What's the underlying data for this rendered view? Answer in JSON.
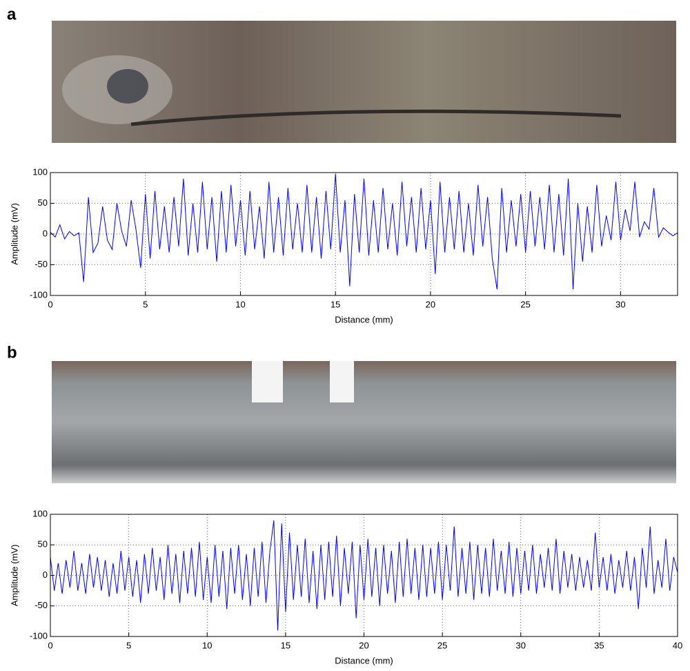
{
  "chart_data": [
    {
      "type": "line",
      "title": "a",
      "x_label": "Distance (mm)",
      "y_label": "Amplitude (mV)",
      "color": "#0000ff",
      "grid": true,
      "xlim": [
        0,
        33
      ],
      "ylim": [
        -100,
        100
      ],
      "xticks": [
        0,
        5,
        10,
        15,
        20,
        25,
        30
      ],
      "yticks": [
        -100,
        -50,
        0,
        50,
        100
      ],
      "x": [
        0,
        0.25,
        0.5,
        0.75,
        1,
        1.25,
        1.5,
        1.75,
        2,
        2.25,
        2.5,
        2.75,
        3,
        3.25,
        3.5,
        3.75,
        4,
        4.25,
        4.5,
        4.75,
        5,
        5.25,
        5.5,
        5.75,
        6,
        6.25,
        6.5,
        6.75,
        7,
        7.25,
        7.5,
        7.75,
        8,
        8.25,
        8.5,
        8.75,
        9,
        9.25,
        9.5,
        9.75,
        10,
        10.25,
        10.5,
        10.75,
        11,
        11.25,
        11.5,
        11.75,
        12,
        12.25,
        12.5,
        12.75,
        13,
        13.25,
        13.5,
        13.75,
        14,
        14.25,
        14.5,
        14.75,
        15,
        15.25,
        15.5,
        15.75,
        16,
        16.25,
        16.5,
        16.75,
        17,
        17.25,
        17.5,
        17.75,
        18,
        18.25,
        18.5,
        18.75,
        19,
        19.25,
        19.5,
        19.75,
        20,
        20.25,
        20.5,
        20.75,
        21,
        21.25,
        21.5,
        21.75,
        22,
        22.25,
        22.5,
        22.75,
        23,
        23.25,
        23.5,
        23.75,
        24,
        24.25,
        24.5,
        24.75,
        25,
        25.25,
        25.5,
        25.75,
        26,
        26.25,
        26.5,
        26.75,
        27,
        27.25,
        27.5,
        27.75,
        28,
        28.25,
        28.5,
        28.75,
        29,
        29.25,
        29.5,
        29.75,
        30,
        30.25,
        30.5,
        30.75,
        31,
        31.25,
        31.5,
        31.75,
        32,
        32.25,
        32.5,
        32.75,
        33
      ],
      "values": [
        3,
        -5,
        15,
        -8,
        4,
        -3,
        2,
        -78,
        60,
        -30,
        -15,
        45,
        -10,
        -25,
        50,
        5,
        -20,
        55,
        8,
        -55,
        65,
        -40,
        70,
        -25,
        45,
        -30,
        60,
        -20,
        90,
        -35,
        50,
        -30,
        85,
        -25,
        60,
        -45,
        70,
        -30,
        80,
        -20,
        55,
        -35,
        70,
        -25,
        45,
        -40,
        85,
        -30,
        60,
        -35,
        75,
        -25,
        50,
        -30,
        80,
        -30,
        60,
        -40,
        70,
        -25,
        98,
        -30,
        55,
        -85,
        65,
        -30,
        90,
        -35,
        55,
        -30,
        75,
        -25,
        50,
        -35,
        85,
        -20,
        60,
        -30,
        75,
        -25,
        55,
        -65,
        85,
        -30,
        60,
        -25,
        70,
        -30,
        50,
        -35,
        80,
        -20,
        60,
        -40,
        -90,
        75,
        -30,
        55,
        -20,
        65,
        -30,
        70,
        -20,
        60,
        -25,
        80,
        -30,
        65,
        -35,
        90,
        -90,
        50,
        -45,
        45,
        -30,
        80,
        -20,
        30,
        -10,
        85,
        -10,
        40,
        5,
        85,
        -5,
        20,
        8,
        75,
        -5,
        10,
        3,
        -3,
        2
      ]
    },
    {
      "type": "line",
      "title": "b",
      "x_label": "Distance (mm)",
      "y_label": "Amplitude (mV)",
      "color": "#0000ff",
      "grid": true,
      "xlim": [
        0,
        40
      ],
      "ylim": [
        -100,
        100
      ],
      "xticks": [
        0,
        5,
        10,
        15,
        20,
        25,
        30,
        35,
        40
      ],
      "yticks": [
        -100,
        -50,
        0,
        50,
        100
      ],
      "x": [
        0,
        0.25,
        0.5,
        0.75,
        1,
        1.25,
        1.5,
        1.75,
        2,
        2.25,
        2.5,
        2.75,
        3,
        3.25,
        3.5,
        3.75,
        4,
        4.25,
        4.5,
        4.75,
        5,
        5.25,
        5.5,
        5.75,
        6,
        6.25,
        6.5,
        6.75,
        7,
        7.25,
        7.5,
        7.75,
        8,
        8.25,
        8.5,
        8.75,
        9,
        9.25,
        9.5,
        9.75,
        10,
        10.25,
        10.5,
        10.75,
        11,
        11.25,
        11.5,
        11.75,
        12,
        12.25,
        12.5,
        12.75,
        13,
        13.25,
        13.5,
        13.75,
        14,
        14.25,
        14.5,
        14.75,
        15,
        15.25,
        15.5,
        15.75,
        16,
        16.25,
        16.5,
        16.75,
        17,
        17.25,
        17.5,
        17.75,
        18,
        18.25,
        18.5,
        18.75,
        19,
        19.25,
        19.5,
        19.75,
        20,
        20.25,
        20.5,
        20.75,
        21,
        21.25,
        21.5,
        21.75,
        22,
        22.25,
        22.5,
        22.75,
        23,
        23.25,
        23.5,
        23.75,
        24,
        24.25,
        24.5,
        24.75,
        25,
        25.25,
        25.5,
        25.75,
        26,
        26.25,
        26.5,
        26.75,
        27,
        27.25,
        27.5,
        27.75,
        28,
        28.25,
        28.5,
        28.75,
        29,
        29.25,
        29.5,
        29.75,
        30,
        30.25,
        30.5,
        30.75,
        31,
        31.25,
        31.5,
        31.75,
        32,
        32.25,
        32.5,
        32.75,
        33,
        33.25,
        33.5,
        33.75,
        34,
        34.25,
        34.5,
        34.75,
        35,
        35.25,
        35.5,
        35.75,
        36,
        36.25,
        36.5,
        36.75,
        37,
        37.25,
        37.5,
        37.75,
        38,
        38.25,
        38.5,
        38.75,
        39,
        39.25,
        39.5,
        39.75,
        40
      ],
      "values": [
        30,
        -25,
        20,
        -30,
        25,
        -20,
        40,
        -25,
        20,
        -30,
        35,
        -20,
        30,
        -25,
        25,
        -35,
        20,
        -30,
        40,
        -25,
        30,
        -35,
        25,
        -45,
        35,
        -30,
        45,
        -25,
        30,
        -40,
        50,
        -30,
        35,
        -45,
        40,
        -30,
        45,
        -35,
        55,
        -40,
        30,
        -45,
        50,
        -35,
        40,
        -55,
        45,
        -30,
        50,
        -40,
        35,
        -50,
        45,
        -35,
        55,
        -45,
        40,
        90,
        -90,
        85,
        -60,
        70,
        -40,
        50,
        -35,
        60,
        -45,
        40,
        -55,
        50,
        -40,
        55,
        -35,
        65,
        -50,
        45,
        -30,
        55,
        -70,
        50,
        -40,
        60,
        -35,
        45,
        -50,
        50,
        -30,
        40,
        -45,
        55,
        -35,
        60,
        -30,
        45,
        -40,
        50,
        -35,
        45,
        -30,
        55,
        -40,
        50,
        -25,
        80,
        -35,
        45,
        -30,
        55,
        -40,
        50,
        -30,
        45,
        -35,
        60,
        -25,
        40,
        -30,
        55,
        -35,
        45,
        -30,
        40,
        -25,
        50,
        -30,
        35,
        -20,
        45,
        -25,
        60,
        -30,
        40,
        -20,
        35,
        -25,
        30,
        -20,
        25,
        -25,
        70,
        -20,
        30,
        -25,
        35,
        -30,
        25,
        -20,
        40,
        -25,
        30,
        -55,
        45,
        -20,
        80,
        -30,
        25,
        -20,
        60,
        -25,
        30,
        5
      ]
    }
  ]
}
